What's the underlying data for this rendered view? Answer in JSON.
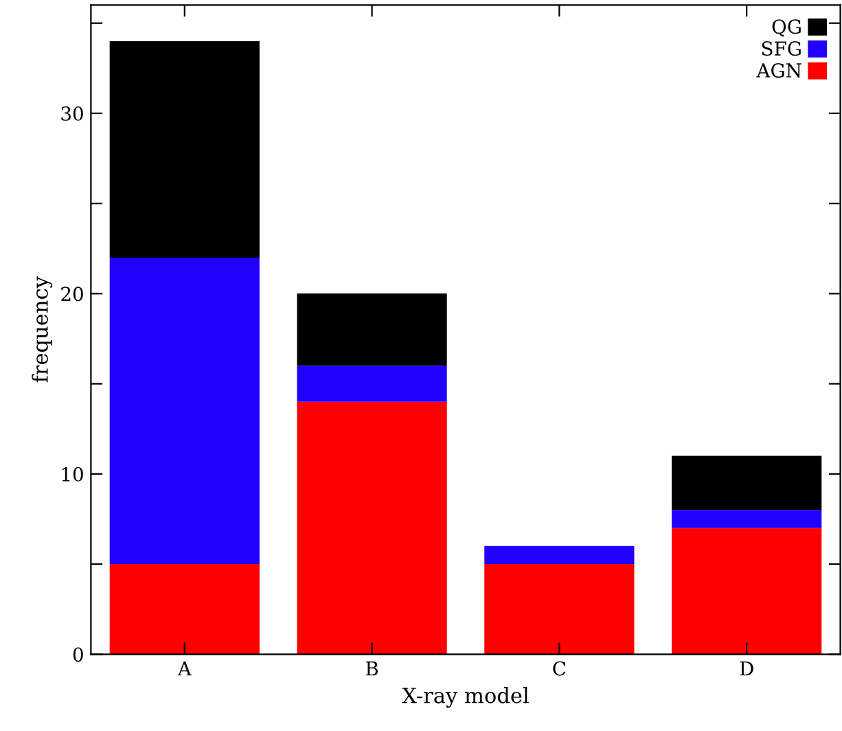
{
  "chart_data": {
    "type": "bar",
    "stacked": true,
    "xlabel": "X-ray model",
    "ylabel": "frequency",
    "categories": [
      "A",
      "B",
      "C",
      "D"
    ],
    "series": [
      {
        "name": "AGN",
        "color": "#ff0000",
        "values": [
          5,
          14,
          5,
          7
        ]
      },
      {
        "name": "SFG",
        "color": "#2200ff",
        "values": [
          17,
          2,
          1,
          1
        ]
      },
      {
        "name": "QG",
        "color": "#000000",
        "values": [
          12,
          4,
          0,
          3
        ]
      }
    ],
    "ylim": [
      0,
      36
    ],
    "yticks": [
      0,
      {
        "value": 5,
        "label": null
      },
      10,
      {
        "value": 15,
        "label": null
      },
      20,
      {
        "value": 25,
        "label": null
      },
      30,
      {
        "value": 35,
        "label": null
      }
    ],
    "grid": false,
    "legend": "top right"
  }
}
